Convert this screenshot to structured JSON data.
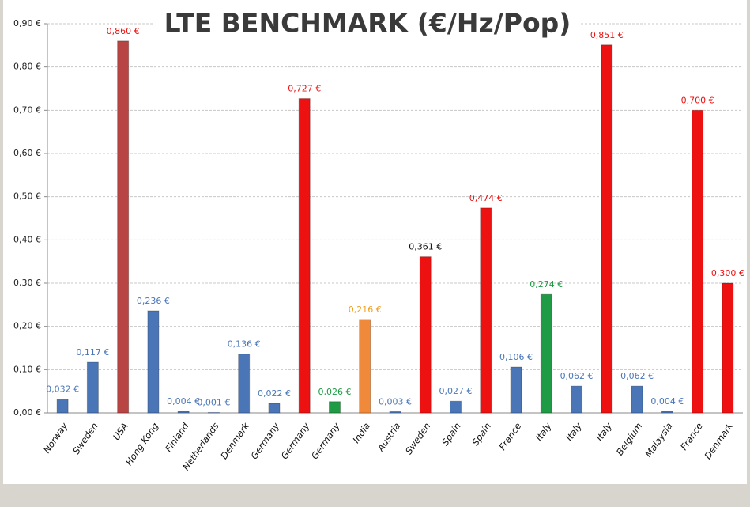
{
  "chart_data": {
    "type": "bar",
    "title": "LTE BENCHMARK (€/Hz/Pop)",
    "categories": [
      "Norway",
      "Sweden",
      "USA",
      "Hong Kong",
      "Finland",
      "Netherlands",
      "Denmark",
      "Germany",
      "Germany",
      "Germany",
      "India",
      "Austria",
      "Sweden",
      "Spain",
      "Spain",
      "France",
      "Italy",
      "Italy",
      "Italy",
      "Belgium",
      "Malaysia",
      "France",
      "Denmark"
    ],
    "values": [
      0.032,
      0.117,
      0.86,
      0.236,
      0.004,
      0.001,
      0.136,
      0.022,
      0.727,
      0.026,
      0.216,
      0.003,
      0.361,
      0.027,
      0.474,
      0.106,
      0.274,
      0.062,
      0.851,
      0.062,
      0.004,
      0.7,
      0.3
    ],
    "value_labels": [
      "0,032 €",
      "0,117 €",
      "0,860 €",
      "0,236 €",
      "0,004 €",
      "0,001 €",
      "0,136 €",
      "0,022 €",
      "0,727 €",
      "0,026 €",
      "0,216 €",
      "0,003 €",
      "0,361 €",
      "0,027 €",
      "0,474 €",
      "0,106 €",
      "0,274 €",
      "0,062 €",
      "0,851 €",
      "0,062 €",
      "0,004 €",
      "0,700 €",
      "0,300 €"
    ],
    "colors": [
      "#4a76b8",
      "#4a76b8",
      "#b84543",
      "#4a76b8",
      "#4a76b8",
      "#4a76b8",
      "#4a76b8",
      "#4a76b8",
      "#ee1111",
      "#1f9a45",
      "#f08a3a",
      "#4a76b8",
      "#ee1111",
      "#4a76b8",
      "#ee1111",
      "#4a76b8",
      "#1f9a45",
      "#4a76b8",
      "#ee1111",
      "#4a76b8",
      "#4a76b8",
      "#ee1111",
      "#ee1111"
    ],
    "label_colors": [
      "#4a76b8",
      "#4a76b8",
      "#ee1111",
      "#4a76b8",
      "#4a76b8",
      "#4a76b8",
      "#4a76b8",
      "#4a76b8",
      "#ee1111",
      "#1f9a45",
      "#f0a020",
      "#4a76b8",
      "#111111",
      "#4a76b8",
      "#ee1111",
      "#4a76b8",
      "#1f9a45",
      "#4a76b8",
      "#ee1111",
      "#4a76b8",
      "#4a76b8",
      "#ee1111",
      "#ee1111"
    ],
    "ylim": [
      0,
      0.9
    ],
    "yticks": [
      {
        "value": 0,
        "label": "0,00 €"
      },
      {
        "value": 0.1,
        "label": "0,10 €"
      },
      {
        "value": 0.2,
        "label": "0,20 €"
      },
      {
        "value": 0.3,
        "label": "0,30 €"
      },
      {
        "value": 0.4,
        "label": "0,40 €"
      },
      {
        "value": 0.5,
        "label": "0,50 €"
      },
      {
        "value": 0.6,
        "label": "0,60 €"
      },
      {
        "value": 0.7,
        "label": "0,70 €"
      },
      {
        "value": 0.8,
        "label": "0,80 €"
      },
      {
        "value": 0.9,
        "label": "0,90 €"
      }
    ],
    "grid": true
  }
}
